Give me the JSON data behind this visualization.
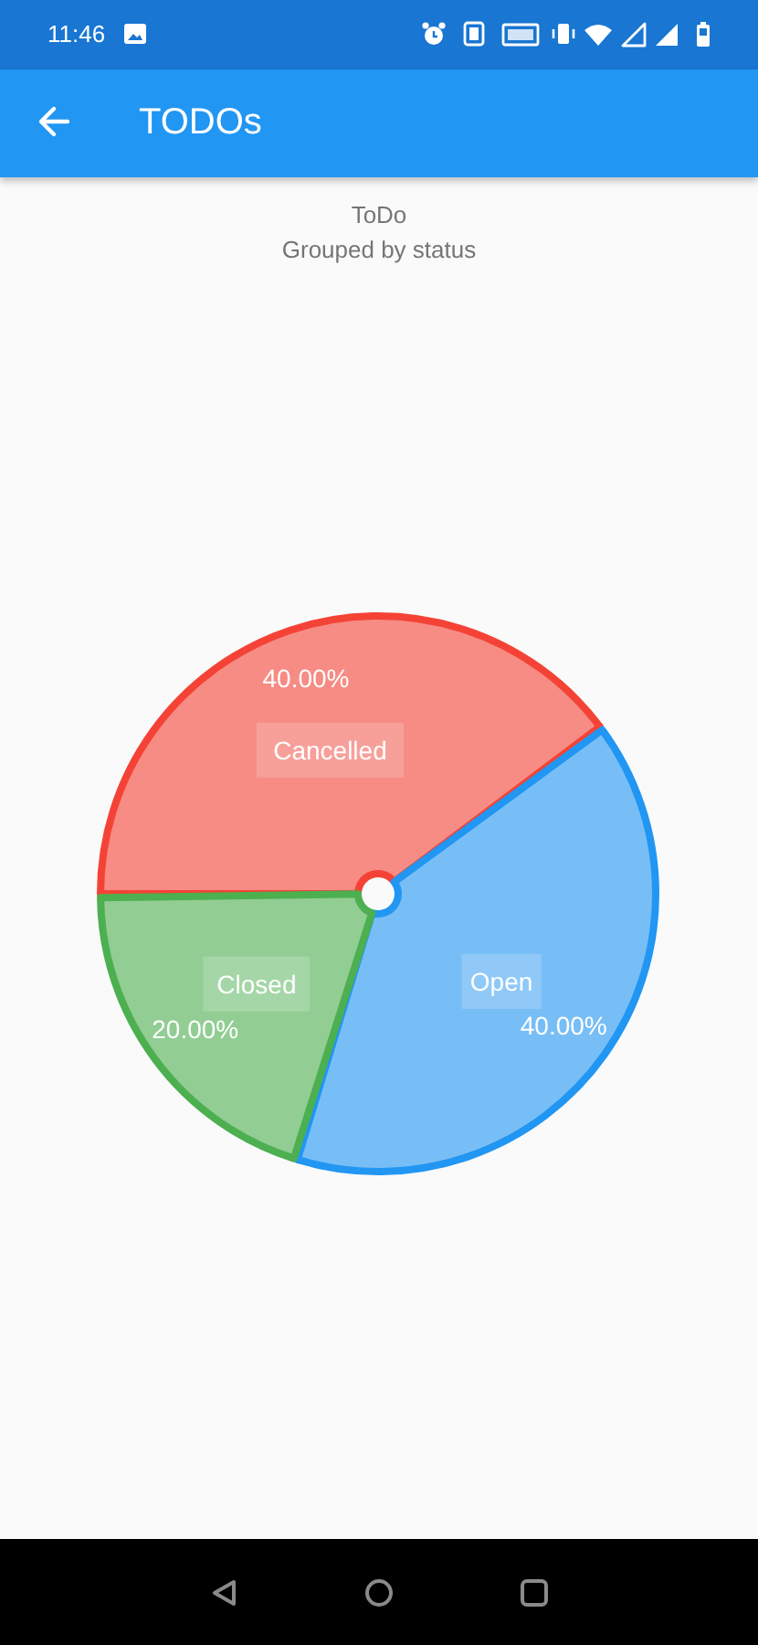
{
  "chart_data": {
    "type": "pie",
    "title": "ToDo",
    "subtitle": "Grouped by status",
    "categories": [
      "Cancelled",
      "Open",
      "Closed"
    ],
    "values": [
      40,
      40,
      20
    ],
    "colors": [
      "#f44336",
      "#2196f3",
      "#4caf50"
    ],
    "value_labels": [
      "40.00%",
      "40.00%",
      "20.00%"
    ],
    "annotations": [
      "11:46",
      "TODOs"
    ]
  }
}
